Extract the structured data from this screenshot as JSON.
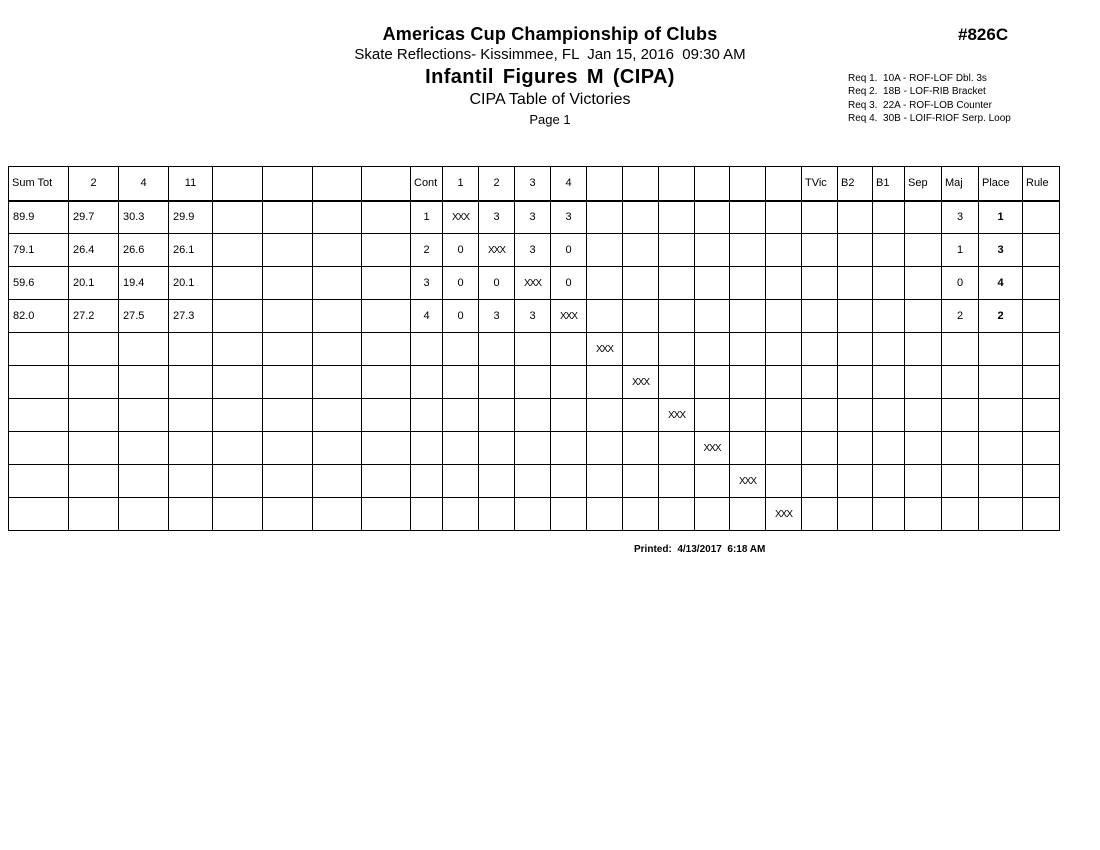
{
  "page": {
    "title": "Americas Cup Championship of Clubs",
    "venue_date": "Skate Reflections- Kissimmee, FL  Jan 15, 2016  09:30 AM",
    "event_title": "Infantil Figures M (CIPA)",
    "table_title": "CIPA Table of Victories",
    "page_label": "Page 1",
    "event_number": "#826C",
    "requirements": [
      "Req 1.  10A - ROF-LOF Dbl. 3s",
      "Req 2.  18B - LOF-RIB Bracket",
      "Req 3.  22A - ROF-LOB Counter",
      "Req 4.  30B - LOIF-RIOF Serp. Loop"
    ],
    "printed": "Printed:  4/13/2017  6:18 AM"
  },
  "colors": {
    "ink": "#000000",
    "paper": "#ffffff"
  },
  "table": {
    "columns": [
      "Sum Tot",
      "2",
      "4",
      "11",
      "",
      "",
      "",
      "",
      "Cont",
      "1",
      "2",
      "3",
      "4",
      "",
      "",
      "",
      "",
      "",
      "",
      "TVic",
      "B2",
      "B1",
      "Sep",
      "Maj",
      "Place",
      "Rule"
    ],
    "rows": [
      [
        "89.9",
        "29.7",
        "30.3",
        "29.9",
        "",
        "",
        "",
        "",
        "1",
        "XXX",
        "3",
        "3",
        "3",
        "",
        "",
        "",
        "",
        "",
        "",
        "",
        "",
        "",
        "",
        "3",
        "1",
        ""
      ],
      [
        "79.1",
        "26.4",
        "26.6",
        "26.1",
        "",
        "",
        "",
        "",
        "2",
        "0",
        "XXX",
        "3",
        "0",
        "",
        "",
        "",
        "",
        "",
        "",
        "",
        "",
        "",
        "",
        "1",
        "3",
        ""
      ],
      [
        "59.6",
        "20.1",
        "19.4",
        "20.1",
        "",
        "",
        "",
        "",
        "3",
        "0",
        "0",
        "XXX",
        "0",
        "",
        "",
        "",
        "",
        "",
        "",
        "",
        "",
        "",
        "",
        "0",
        "4",
        ""
      ],
      [
        "82.0",
        "27.2",
        "27.5",
        "27.3",
        "",
        "",
        "",
        "",
        "4",
        "0",
        "3",
        "3",
        "XXX",
        "",
        "",
        "",
        "",
        "",
        "",
        "",
        "",
        "",
        "",
        "2",
        "2",
        ""
      ],
      [
        "",
        "",
        "",
        "",
        "",
        "",
        "",
        "",
        "",
        "",
        "",
        "",
        "",
        "XXX",
        "",
        "",
        "",
        "",
        "",
        "",
        "",
        "",
        "",
        "",
        "",
        ""
      ],
      [
        "",
        "",
        "",
        "",
        "",
        "",
        "",
        "",
        "",
        "",
        "",
        "",
        "",
        "",
        "XXX",
        "",
        "",
        "",
        "",
        "",
        "",
        "",
        "",
        "",
        "",
        ""
      ],
      [
        "",
        "",
        "",
        "",
        "",
        "",
        "",
        "",
        "",
        "",
        "",
        "",
        "",
        "",
        "",
        "XXX",
        "",
        "",
        "",
        "",
        "",
        "",
        "",
        "",
        "",
        ""
      ],
      [
        "",
        "",
        "",
        "",
        "",
        "",
        "",
        "",
        "",
        "",
        "",
        "",
        "",
        "",
        "",
        "",
        "XXX",
        "",
        "",
        "",
        "",
        "",
        "",
        "",
        "",
        ""
      ],
      [
        "",
        "",
        "",
        "",
        "",
        "",
        "",
        "",
        "",
        "",
        "",
        "",
        "",
        "",
        "",
        "",
        "",
        "XXX",
        "",
        "",
        "",
        "",
        "",
        "",
        "",
        ""
      ],
      [
        "",
        "",
        "",
        "",
        "",
        "",
        "",
        "",
        "",
        "",
        "",
        "",
        "",
        "",
        "",
        "",
        "",
        "",
        "XXX",
        "",
        "",
        "",
        "",
        "",
        "",
        ""
      ]
    ]
  }
}
